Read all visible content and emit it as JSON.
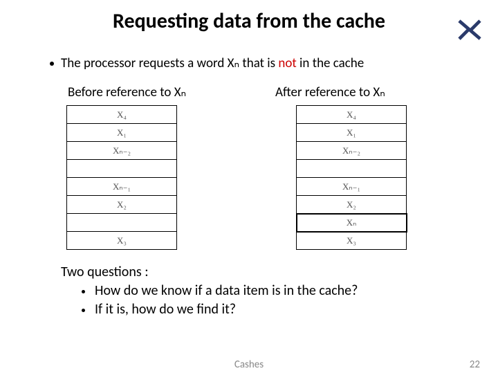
{
  "title": "Requesting data from the cache",
  "main_line_before": "The processor requests a word ",
  "main_line_word": "Xₙ",
  "main_line_mid": " that is ",
  "main_line_not": "not",
  "main_line_after": " in the cache",
  "before_label": "Before reference to Xₙ",
  "after_label": "After reference to Xₙ",
  "before_cells": [
    "X₄",
    "X₁",
    "Xₙ₋₂",
    "",
    "Xₙ₋₁",
    "X₂",
    "",
    "X₃"
  ],
  "after_cells": [
    "X₄",
    "X₁",
    "Xₙ₋₂",
    "",
    "Xₙ₋₁",
    "X₂",
    "Xₙ",
    "X₃"
  ],
  "highlight_index_after": 6,
  "questions_heading": "Two questions :",
  "q1": "How do we know if a data item is in the cache?",
  "q2": "If it is, how do we find it?",
  "footer": "Cashes",
  "page": "22",
  "logo_color": "#2a3a6a"
}
